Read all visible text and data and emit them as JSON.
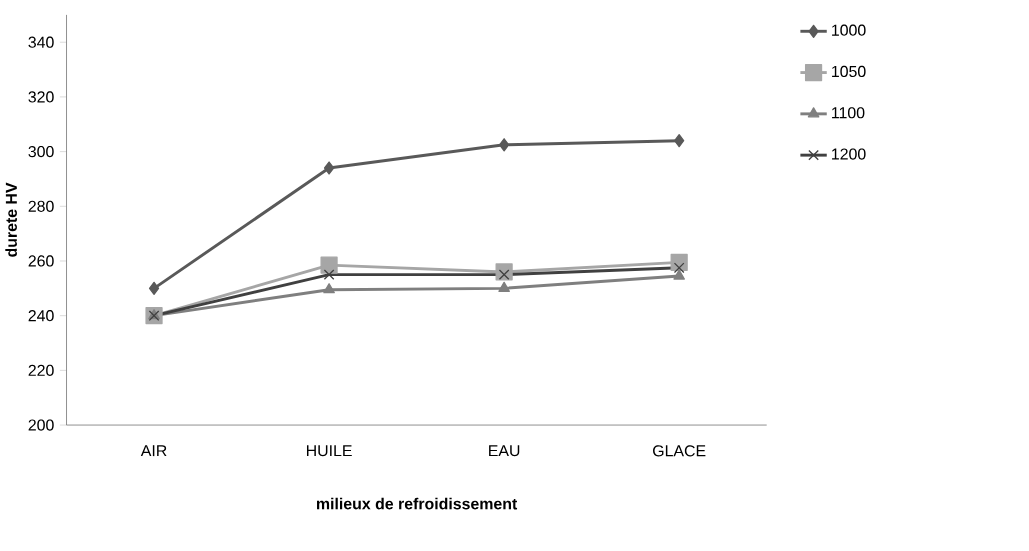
{
  "chart_data": {
    "type": "line",
    "xlabel": "milieux de refroidissement",
    "ylabel": "durete HV",
    "categories": [
      "AIR",
      "HUILE",
      "EAU",
      "GLACE"
    ],
    "series": [
      {
        "name": "1000",
        "color": "#595959",
        "marker": "diamond",
        "values": [
          250,
          294,
          302.5,
          304
        ]
      },
      {
        "name": "1050",
        "color": "#a6a6a6",
        "marker": "square",
        "values": [
          240,
          258.5,
          256,
          259.5
        ]
      },
      {
        "name": "1100",
        "color": "#7f7f7f",
        "marker": "triangle",
        "values": [
          240,
          249.5,
          250,
          254.5
        ]
      },
      {
        "name": "1200",
        "color": "#404040",
        "marker": "cross",
        "values": [
          240,
          255,
          255,
          257.5
        ]
      }
    ],
    "ylim": [
      200,
      350
    ],
    "yticks": [
      200,
      220,
      240,
      260,
      280,
      300,
      320,
      340
    ],
    "grid": false,
    "legend": "top right"
  }
}
